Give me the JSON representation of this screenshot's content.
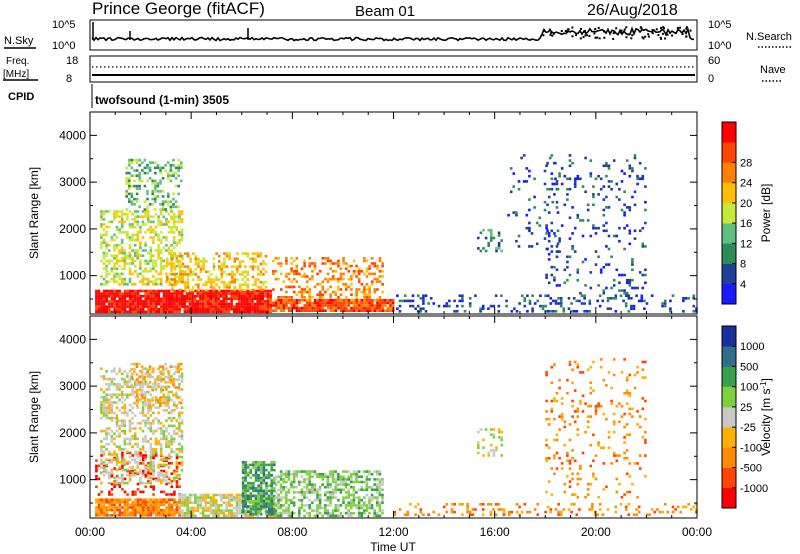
{
  "header": {
    "station": "Prince George (fitACF)",
    "beam": "Beam 01",
    "date": "26/Aug/2018"
  },
  "top_panels": {
    "nsky_label": "N.Sky",
    "nsky_ticks": [
      "10^5",
      "10^0"
    ],
    "nsearch_label": "N.Search",
    "nsearch_ticks": [
      "10^5",
      "10^0"
    ],
    "freq_label_line1": "Freq.",
    "freq_label_line2": "[MHz]",
    "freq_ticks": [
      "18",
      "8"
    ],
    "nave_label": "Nave",
    "nave_ticks": [
      "60",
      "0"
    ],
    "cpid_label": "CPID",
    "cpid_text": "twofsound (1-min) 3505"
  },
  "colors": {
    "power": [
      "#1a1aff",
      "#1f3f9a",
      "#2e8b57",
      "#5fbf7f",
      "#c8e83a",
      "#ffc000",
      "#ff8000",
      "#ff4500",
      "#ff0000"
    ],
    "velocity": [
      "#ff0000",
      "#ff4500",
      "#ff8c00",
      "#ffb000",
      "#c8c8c8",
      "#7fd040",
      "#3aa04a",
      "#2e6e8e",
      "#1a2ea0"
    ]
  },
  "chart_data": [
    {
      "type": "heatmap",
      "title": "Power",
      "ylabel": "Slant Range [km]",
      "xlabel": "Time UT",
      "x_ticks": [
        "00:00",
        "04:00",
        "08:00",
        "12:00",
        "16:00",
        "20:00",
        "00:00"
      ],
      "y_ticks": [
        "1000",
        "2000",
        "3000",
        "4000"
      ],
      "ylim": [
        180,
        4500
      ],
      "xlim_hours": [
        0,
        24
      ],
      "colorbar_label": "Power [dB]",
      "colorbar_ticks": [
        "4",
        "8",
        "12",
        "16",
        "20",
        "24",
        "28"
      ],
      "regions": [
        {
          "t0": 0.2,
          "t1": 7.1,
          "r0": 250,
          "r1": 700,
          "level": 8,
          "density": 0.95
        },
        {
          "t0": 7.1,
          "t1": 12.0,
          "r0": 250,
          "r1": 500,
          "level": 7,
          "density": 0.9
        },
        {
          "t0": 0.4,
          "t1": 3.6,
          "r0": 800,
          "r1": 2400,
          "level": 4,
          "density": 0.5
        },
        {
          "t0": 1.4,
          "t1": 3.6,
          "r0": 2400,
          "r1": 3500,
          "level": 3,
          "density": 0.35
        },
        {
          "t0": 3.0,
          "t1": 7.0,
          "r0": 700,
          "r1": 1500,
          "level": 5,
          "density": 0.4
        },
        {
          "t0": 7.2,
          "t1": 11.6,
          "r0": 500,
          "r1": 1400,
          "level": 6,
          "density": 0.35
        },
        {
          "t0": 12.0,
          "t1": 24.0,
          "r0": 250,
          "r1": 600,
          "level": 1,
          "density": 0.22
        },
        {
          "t0": 18.0,
          "t1": 22.0,
          "r0": 600,
          "r1": 3600,
          "level": 1,
          "density": 0.12
        },
        {
          "t0": 16.5,
          "t1": 18.5,
          "r0": 1500,
          "r1": 3600,
          "level": 1,
          "density": 0.06
        },
        {
          "t0": 15.3,
          "t1": 16.3,
          "r0": 1500,
          "r1": 2000,
          "level": 2,
          "density": 0.3
        }
      ]
    },
    {
      "type": "heatmap",
      "title": "Velocity",
      "ylabel": "Slant Range [km]",
      "xlabel": "Time UT",
      "x_ticks": [
        "00:00",
        "04:00",
        "08:00",
        "12:00",
        "16:00",
        "20:00",
        "00:00"
      ],
      "y_ticks": [
        "1000",
        "2000",
        "3000",
        "4000"
      ],
      "ylim": [
        180,
        4500
      ],
      "xlim_hours": [
        0,
        24
      ],
      "colorbar_label": "Velocity [m s^-1]",
      "colorbar_ticks": [
        "-1000",
        "-500",
        "-100",
        "-25",
        "25",
        "100",
        "500",
        "1000"
      ],
      "regions": [
        {
          "t0": 0.2,
          "t1": 3.5,
          "r0": 250,
          "r1": 600,
          "level": 2,
          "density": 0.9
        },
        {
          "t0": 0.2,
          "t1": 3.5,
          "r0": 700,
          "r1": 1600,
          "level": 0,
          "density": 0.25
        },
        {
          "t0": 0.4,
          "t1": 3.6,
          "r0": 900,
          "r1": 3400,
          "level": 4,
          "density": 0.45
        },
        {
          "t0": 1.6,
          "t1": 3.6,
          "r0": 2600,
          "r1": 3500,
          "level": 3,
          "density": 0.35
        },
        {
          "t0": 3.5,
          "t1": 7.5,
          "r0": 250,
          "r1": 700,
          "level": 4,
          "density": 0.75
        },
        {
          "t0": 6.0,
          "t1": 7.3,
          "r0": 250,
          "r1": 1400,
          "level": 6,
          "density": 0.75
        },
        {
          "t0": 7.3,
          "t1": 11.6,
          "r0": 250,
          "r1": 1200,
          "level": 5,
          "density": 0.55
        },
        {
          "t0": 12.0,
          "t1": 24.0,
          "r0": 250,
          "r1": 500,
          "level": 2,
          "density": 0.18
        },
        {
          "t0": 18.0,
          "t1": 22.0,
          "r0": 600,
          "r1": 3600,
          "level": 2,
          "density": 0.12
        },
        {
          "t0": 15.3,
          "t1": 16.3,
          "r0": 1500,
          "r1": 2100,
          "level": 4,
          "density": 0.3
        }
      ]
    }
  ]
}
